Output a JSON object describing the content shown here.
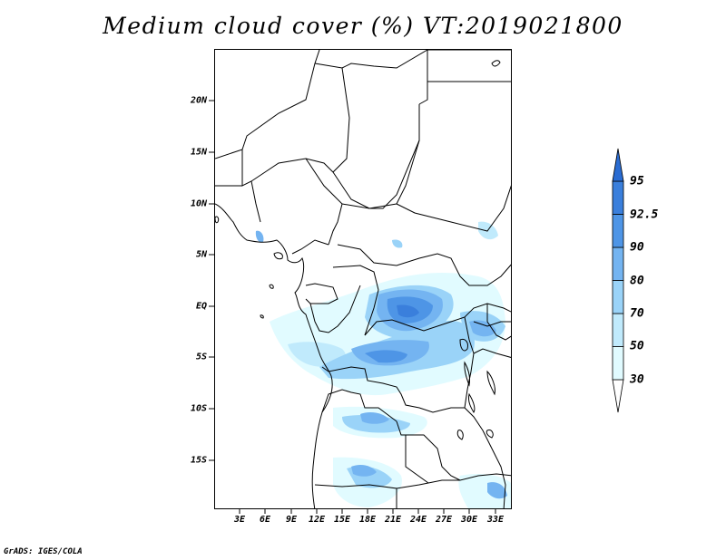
{
  "title": "Medium cloud cover (%) VT:2019021800",
  "credit": "GrADS: IGES/COLA",
  "map": {
    "lat_range": [
      -20,
      25
    ],
    "lon_range": [
      0,
      34
    ],
    "lat_ticks": [
      "20N",
      "15N",
      "10N",
      "5N",
      "EQ",
      "5S",
      "10S",
      "15S"
    ],
    "lat_values": [
      20,
      15,
      10,
      5,
      0,
      -5,
      -10,
      -15
    ],
    "lon_ticks": [
      "3E",
      "6E",
      "9E",
      "12E",
      "15E",
      "18E",
      "21E",
      "24E",
      "27E",
      "30E",
      "33E"
    ],
    "lon_values": [
      3,
      6,
      9,
      12,
      15,
      18,
      21,
      24,
      27,
      30,
      33
    ]
  },
  "colorbar": {
    "labels": [
      "30",
      "50",
      "70",
      "80",
      "90",
      "92.5",
      "95"
    ],
    "colors": [
      "#ffffff",
      "#e1fbff",
      "#c0eafc",
      "#9ad3f8",
      "#74b4f1",
      "#4e95e6",
      "#3a7fdc",
      "#2a6cd2"
    ]
  }
}
